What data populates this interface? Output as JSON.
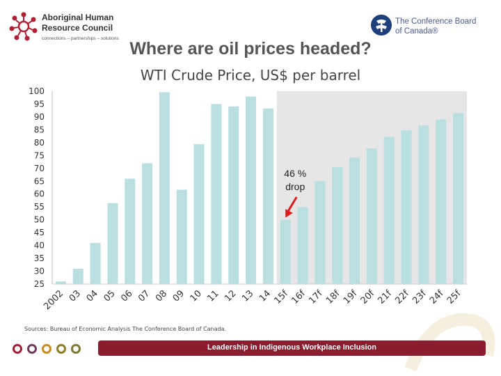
{
  "header": {
    "left_logo": {
      "line1": "Aboriginal Human",
      "line2": "Resource Council",
      "tagline": "connections – partnerships – solutions"
    },
    "right_logo": {
      "line1": "The Conference Board",
      "line2": "of Canada®"
    }
  },
  "slide": {
    "title": "Where are oil prices headed?",
    "sources": "Sources: Bureau of Economic Analysis The Conference Board of Canada."
  },
  "footer": {
    "banner": "Leadership in Indigenous Workplace Inclusion",
    "dot_colors": [
      "#a01e3a",
      "#6e3b5c",
      "#c98a1b",
      "#8a7d2a",
      "#7a7a32"
    ]
  },
  "chart_data": {
    "type": "bar",
    "title": "WTI Crude Price, US$ per barrel",
    "categories": [
      "2002",
      "03",
      "04",
      "05",
      "06",
      "07",
      "08",
      "09",
      "10",
      "11",
      "12",
      "13",
      "14",
      "15f",
      "16f",
      "17f",
      "18f",
      "19f",
      "20f",
      "21f",
      "22f",
      "23f",
      "24f",
      "25f"
    ],
    "values": [
      26,
      31,
      41,
      56.5,
      66,
      72,
      99.6,
      61.7,
      79.4,
      95,
      94.1,
      97.9,
      93.3,
      50,
      55,
      65,
      70.5,
      74.2,
      77.8,
      82.3,
      84.8,
      86.7,
      89,
      91.5
    ],
    "ylim": [
      25,
      100
    ],
    "yticks": [
      100,
      95,
      90,
      85,
      80,
      75,
      70,
      65,
      60,
      55,
      50,
      45,
      40,
      35,
      30,
      25
    ],
    "forecast_start_index": 13,
    "bar_color": "#b9dfe0",
    "forecast_bg": "#e6e6e6",
    "grid": false,
    "annotation": {
      "text_line1": "46 %",
      "text_line2": "drop",
      "target_index": 13,
      "arrow_color": "#d9201f"
    }
  }
}
